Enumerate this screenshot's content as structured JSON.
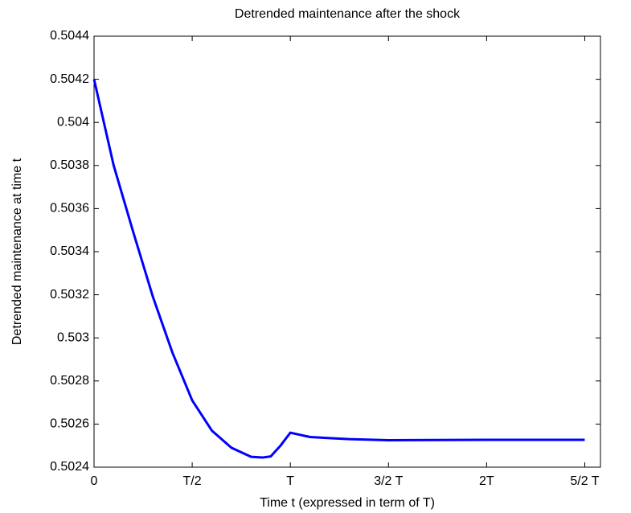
{
  "chart_data": {
    "type": "line",
    "title": "Detrended maintenance after the shock",
    "x_label": "Time t (expressed in term of T)",
    "y_label": "Detrended maintenance at time t",
    "x": [
      0,
      0.1,
      0.2,
      0.3,
      0.4,
      0.5,
      0.6,
      0.7,
      0.8,
      0.86,
      0.9,
      0.95,
      1.0,
      1.05,
      1.1,
      1.2,
      1.3,
      1.5,
      2.0,
      2.5
    ],
    "series": [
      {
        "name": "maintenance",
        "color": "#0000ff",
        "values": [
          0.5042,
          0.5038,
          0.50349,
          0.50319,
          0.50293,
          0.50271,
          0.50257,
          0.50249,
          0.502448,
          0.502445,
          0.50245,
          0.5025,
          0.50256,
          0.50255,
          0.50254,
          0.502535,
          0.50253,
          0.502525,
          0.502527,
          0.502527
        ]
      }
    ],
    "xlim": [
      0,
      2.58
    ],
    "xticks": [
      0,
      {
        "value": 0.5,
        "label": "T/2"
      },
      {
        "value": 1,
        "label": "T"
      },
      {
        "value": 1.5,
        "label": "3/2 T"
      },
      {
        "value": 2,
        "label": "2T"
      },
      {
        "value": 2.5,
        "label": "5/2 T"
      }
    ],
    "ylim": [
      0.5024,
      0.5044
    ],
    "yticks": [
      0.5024,
      0.5026,
      0.5028,
      0.503,
      0.5032,
      0.5034,
      0.5036,
      0.5038,
      0.504,
      0.5042,
      0.5044
    ],
    "grid": false
  }
}
